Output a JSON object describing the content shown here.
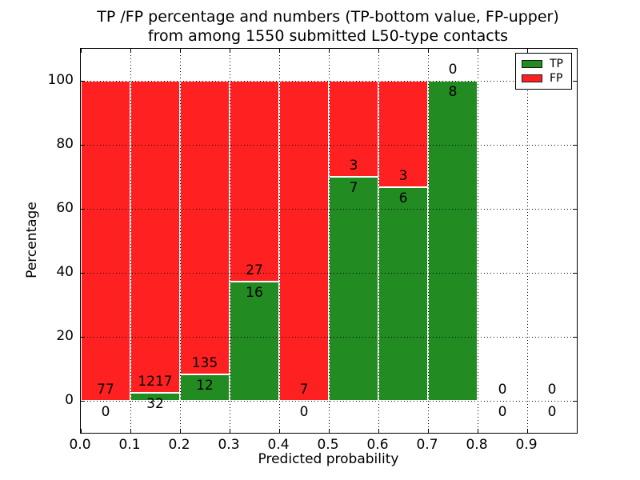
{
  "figure": {
    "background": "#ffffff"
  },
  "chart_data": {
    "type": "bar",
    "stacked": true,
    "orientation": "vertical",
    "title_lines": [
      "TP /FP percentage and numbers (TP-bottom value, FP-upper)",
      "from among 1550 submitted L50-type contacts"
    ],
    "xlabel": "Predicted probability",
    "ylabel": "Percentage",
    "xlim": [
      0.0,
      1.0
    ],
    "ylim": [
      -10,
      110
    ],
    "x_tick_labels": [
      "0.0",
      "0.1",
      "0.2",
      "0.3",
      "0.4",
      "0.5",
      "0.6",
      "0.7",
      "0.8",
      "0.9"
    ],
    "x_tick_values": [
      0.0,
      0.1,
      0.2,
      0.3,
      0.4,
      0.5,
      0.6,
      0.7,
      0.8,
      0.9
    ],
    "y_tick_values": [
      0,
      20,
      40,
      60,
      80,
      100
    ],
    "grid": {
      "style": "dotted",
      "color": "#000000",
      "horizontal": true,
      "vertical": true
    },
    "colors": {
      "tp": "#228B22",
      "fp": "#FF2121",
      "bar_edge": "#ffffff"
    },
    "legend": {
      "position": "upper right",
      "entries": [
        {
          "label": "TP",
          "color": "#228B22"
        },
        {
          "label": "FP",
          "color": "#FF2121"
        }
      ]
    },
    "total_contacts": 1550,
    "label_rule": "FP count printed just above the TP/FP boundary, TP count just below it; bar height shows TP percentage (green) vs FP percentage (red)",
    "bars": [
      {
        "x_start": 0.0,
        "x_end": 0.1,
        "tp_count": 0,
        "fp_count": 77
      },
      {
        "x_start": 0.1,
        "x_end": 0.2,
        "tp_count": 32,
        "fp_count": 1217
      },
      {
        "x_start": 0.2,
        "x_end": 0.3,
        "tp_count": 12,
        "fp_count": 135
      },
      {
        "x_start": 0.3,
        "x_end": 0.4,
        "tp_count": 16,
        "fp_count": 27
      },
      {
        "x_start": 0.4,
        "x_end": 0.5,
        "tp_count": 0,
        "fp_count": 7
      },
      {
        "x_start": 0.5,
        "x_end": 0.6,
        "tp_count": 7,
        "fp_count": 3
      },
      {
        "x_start": 0.6,
        "x_end": 0.7,
        "tp_count": 6,
        "fp_count": 3
      },
      {
        "x_start": 0.7,
        "x_end": 0.8,
        "tp_count": 8,
        "fp_count": 0
      },
      {
        "x_start": 0.8,
        "x_end": 0.9,
        "tp_count": 0,
        "fp_count": 0
      },
      {
        "x_start": 0.9,
        "x_end": 1.0,
        "tp_count": 0,
        "fp_count": 0
      }
    ]
  }
}
